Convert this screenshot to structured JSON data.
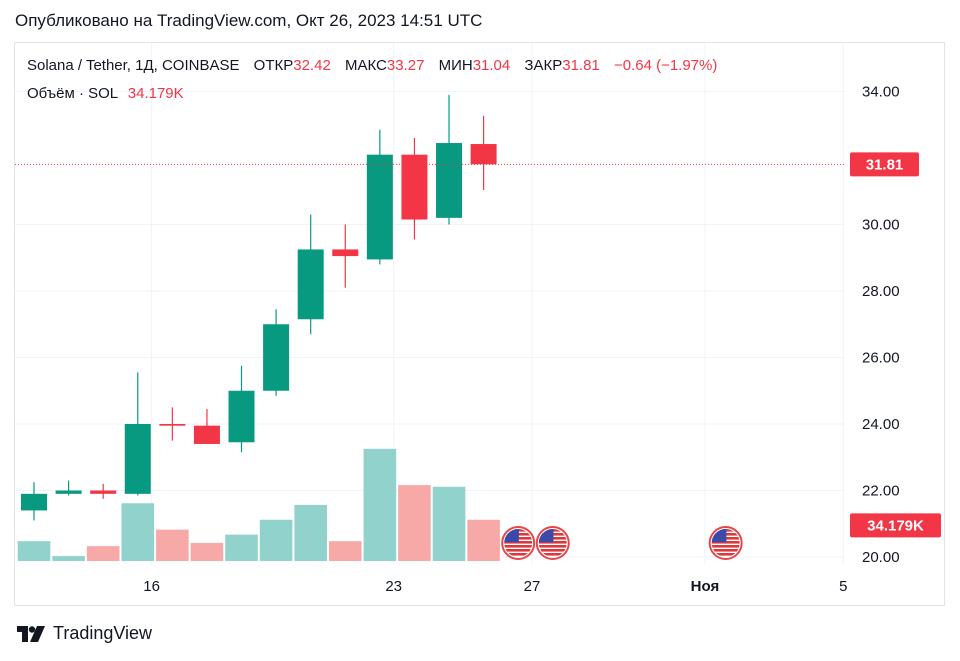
{
  "published": "Опубликовано на TradingView.com, Окт 26, 2023 14:51 UTC",
  "legend": {
    "symbol": "Solana / Tether, 1Д, COINBASE",
    "open_label": "ОТКР",
    "open": "32.42",
    "high_label": "МАКС",
    "high": "33.27",
    "low_label": "МИН",
    "low": "31.04",
    "close_label": "ЗАКР",
    "close": "31.81",
    "change": "−0.64 (−1.97%)",
    "volume_label": "Объём · SOL",
    "volume": "34.179K"
  },
  "footer": {
    "brand": "TradingView"
  },
  "colors": {
    "up": "#089981",
    "down": "#f23645",
    "vol_up": "#92d2cc",
    "vol_down": "#f7a9a7"
  },
  "chart_data": {
    "type": "candlestick",
    "title": "Solana / Tether, 1Д, COINBASE",
    "ylim": [
      19.6,
      35.0
    ],
    "y_ticks": [
      "34.00",
      "30.00",
      "28.00",
      "26.00",
      "24.00",
      "22.00",
      "20.00"
    ],
    "x_ticks": [
      {
        "label": "16",
        "pos": 3.4
      },
      {
        "label": "23",
        "pos": 10.4
      },
      {
        "label": "27",
        "pos": 14.4
      },
      {
        "label": "Ноя",
        "pos": 19.4
      },
      {
        "label": "5",
        "pos": 23.4
      }
    ],
    "x_range": [
      -0.55,
      23.45
    ],
    "last_price_label": "31.81",
    "last_price": 31.81,
    "volume_label": "34.179K",
    "volume_axis_value": 20.95,
    "candles": [
      {
        "o": 21.4,
        "h": 22.25,
        "l": 21.1,
        "c": 21.9,
        "v": 0.6
      },
      {
        "o": 21.9,
        "h": 22.3,
        "l": 21.85,
        "c": 22.0,
        "v": 0.15
      },
      {
        "o": 22.0,
        "h": 22.2,
        "l": 21.75,
        "c": 21.9,
        "v": 0.45
      },
      {
        "o": 21.9,
        "h": 25.55,
        "l": 21.85,
        "c": 24.0,
        "v": 1.75
      },
      {
        "o": 24.0,
        "h": 24.5,
        "l": 23.5,
        "c": 23.95,
        "v": 0.95
      },
      {
        "o": 23.95,
        "h": 24.45,
        "l": 23.4,
        "c": 23.4,
        "v": 0.55
      },
      {
        "o": 23.45,
        "h": 25.75,
        "l": 23.15,
        "c": 25.0,
        "v": 0.8
      },
      {
        "o": 25.0,
        "h": 27.45,
        "l": 24.85,
        "c": 27.0,
        "v": 1.25
      },
      {
        "o": 27.15,
        "h": 30.3,
        "l": 26.7,
        "c": 29.25,
        "v": 1.7
      },
      {
        "o": 29.25,
        "h": 30.0,
        "l": 28.1,
        "c": 29.05,
        "v": 0.6
      },
      {
        "o": 28.95,
        "h": 32.85,
        "l": 28.8,
        "c": 32.1,
        "v": 3.4
      },
      {
        "o": 32.1,
        "h": 32.6,
        "l": 29.55,
        "c": 30.15,
        "v": 2.3
      },
      {
        "o": 30.2,
        "h": 33.9,
        "l": 30.0,
        "c": 32.45,
        "v": 2.25
      },
      {
        "o": 32.42,
        "h": 33.27,
        "l": 31.04,
        "c": 31.81,
        "v": 1.25
      }
    ],
    "events": [
      14,
      15,
      20
    ]
  }
}
